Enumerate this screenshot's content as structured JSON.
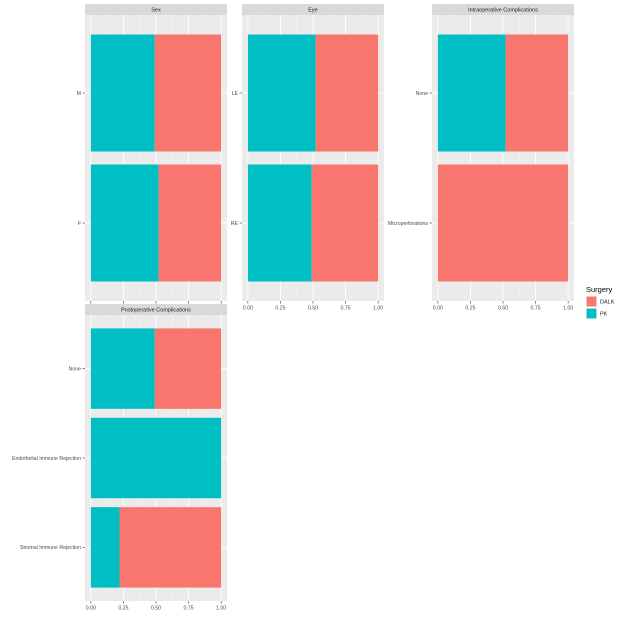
{
  "chart_data": {
    "type": "bar",
    "orientation": "horizontal",
    "stacked": "proportion",
    "xlim": [
      0,
      1
    ],
    "x_ticks": [
      "0.00",
      "0.25",
      "0.50",
      "0.75",
      "1.00"
    ],
    "grid": true,
    "legend": {
      "title": "Surgery",
      "placement": "right",
      "entries": [
        {
          "name": "DALK",
          "color": "#F8766D"
        },
        {
          "name": "PK",
          "color": "#00BFC4"
        }
      ]
    },
    "series_colors": {
      "PK": "#00BFC4",
      "DALK": "#F8766D"
    },
    "panels": [
      {
        "title": "Sex",
        "categories": [
          "M",
          "F"
        ],
        "series": [
          {
            "name": "PK",
            "values": [
              0.49,
              0.52
            ]
          },
          {
            "name": "DALK",
            "values": [
              0.51,
              0.48
            ]
          }
        ]
      },
      {
        "title": "Eye",
        "categories": [
          "LE",
          "RE"
        ],
        "series": [
          {
            "name": "PK",
            "values": [
              0.52,
              0.49
            ]
          },
          {
            "name": "DALK",
            "values": [
              0.48,
              0.51
            ]
          }
        ]
      },
      {
        "title": "Intraoperative Complications",
        "categories": [
          "None",
          "Microperforations"
        ],
        "series": [
          {
            "name": "PK",
            "values": [
              0.52,
              0.0
            ]
          },
          {
            "name": "DALK",
            "values": [
              0.48,
              1.0
            ]
          }
        ]
      },
      {
        "title": "Postoperative Complications",
        "categories": [
          "None",
          "Endothelial Immune Rejection",
          "Stromal Immune Rejection"
        ],
        "series": [
          {
            "name": "PK",
            "values": [
              0.49,
              1.0,
              0.22
            ]
          },
          {
            "name": "DALK",
            "values": [
              0.51,
              0.0,
              0.78
            ]
          }
        ]
      }
    ]
  }
}
